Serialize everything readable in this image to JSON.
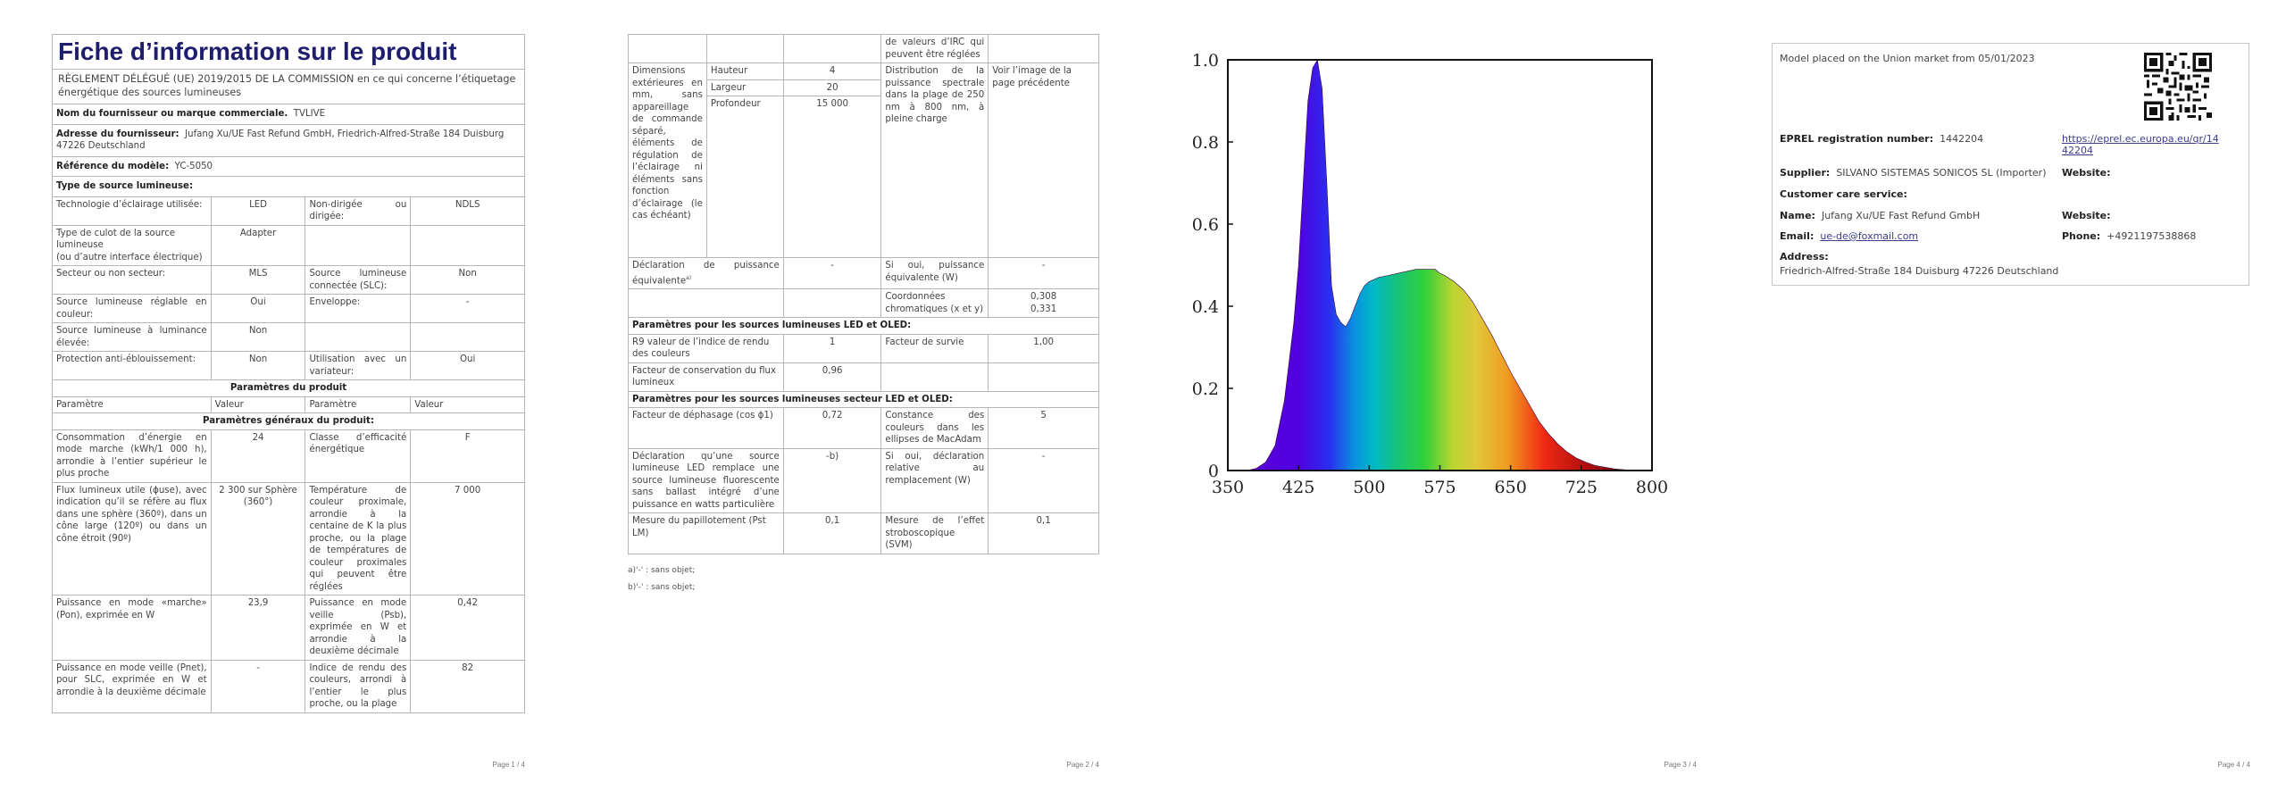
{
  "pages": {
    "p1": {
      "title": "Fiche d’information sur le produit",
      "regulation": "RÈGLEMENT DÉLÉGUÉ (UE) 2019/2015 DE LA COMMISSION en ce qui concerne l’étiquetage énergétique des sources lumineuses",
      "supplier_label": "Nom du fournisseur ou marque commerciale.",
      "supplier_value": "TVLIVE",
      "address_label": "Adresse du fournisseur:",
      "address_value": "Jufang Xu/UE Fast Refund GmbH, Friedrich-Alfred-Straße 184 Duisburg 47226 Deutschland",
      "model_label": "Référence du modèle:",
      "model_value": "YC-5050",
      "type_heading": "Type de source lumineuse:",
      "rows": {
        "tech_label": "Technologie d’éclairage utilisée:",
        "tech_value": "LED",
        "directional_label": "Non-dirigée ou dirigée:",
        "directional_value": "NDLS",
        "cap_label_1": "Type de culot de la source lumineuse",
        "cap_label_2": "(ou d’autre interface électrique)",
        "cap_value": "Adapter",
        "mains_label": "Secteur ou non secteur:",
        "mains_value": "MLS",
        "slc_label": "Source lumineuse connectée (SLC):",
        "slc_value": "Non",
        "colour_label": "Source lumineuse réglable en couleur:",
        "colour_value": "Oui",
        "envelope_label": "Enveloppe:",
        "envelope_value": "-",
        "lum_label": "Source lumineuse à luminance élevée:",
        "lum_value": "Non",
        "glare_label": "Protection anti-éblouissement:",
        "glare_value": "Non",
        "dimmer_label": "Utilisation avec un variateur:",
        "dimmer_value": "Oui"
      },
      "params_heading": "Paramètres du produit",
      "col_param": "Paramètre",
      "col_value": "Valeur",
      "general_heading": "Paramètres généraux du produit:",
      "general": {
        "energy_label": "Consommation d’énergie en mode marche (kWh/1 000 h), arrondie à l’entier supérieur le plus proche",
        "energy_value": "24",
        "class_label": "Classe d’efficacité énergétique",
        "class_value": "F",
        "flux_label": "Flux lumineux utile (ɸuse), avec indication qu’il se réfère au flux dans une sphère (360º), dans un cône large (120º) ou dans un cône étroit (90º)",
        "flux_value": "2 300 sur Sphère (360°)",
        "cct_label": "Température de couleur proximale, arrondie à la centaine de K la plus proche, ou la plage de températures de couleur proximales qui peuvent être réglées",
        "cct_value": "7 000",
        "pon_label": "Puissance en mode «marche» (Pon), exprimée en W",
        "pon_value": "23,9",
        "psb_label": "Puissance en mode veille (Psb), exprimée en W et arrondie à la deuxième décimale",
        "psb_value": "0,42",
        "pnet_label": "Puissance en mode veille (Pnet), pour SLC, exprimée en W et arrondie à la deuxième décimale",
        "pnet_value": "-",
        "cri_label": "Indice de rendu des couleurs, arrondi à l’entier le plus proche, ou la plage",
        "cri_value": "82"
      },
      "page_number": "Page 1 / 4"
    },
    "p2": {
      "cri_cont": "de valeurs d’IRC qui peuvent être réglées",
      "dims_label": "Dimensions extérieures en mm, sans appareillage de commande séparé, éléments de régulation de l’éclairage ni éléments sans fonction d’éclairage (le cas échéant)",
      "height_label": "Hauteur",
      "height_value": "4",
      "width_label": "Largeur",
      "width_value": "20",
      "depth_label": "Profondeur",
      "depth_value": "15 000",
      "spd_label": "Distribution de la puissance spectrale dans la plage de 250 nm à 800 nm, à pleine charge",
      "spd_value": "Voir l’image de la page précédente",
      "equiv_label": "Déclaration de puissance équivalente",
      "equiv_sup": "a)",
      "equiv_value": "-",
      "equiv_w_label": "Si oui, puissance équivalente (W)",
      "equiv_w_value": "-",
      "chroma_label": "Coordonnées chromatiques (x et y)",
      "chroma_x": "0,308",
      "chroma_y": "0,331",
      "led_heading": "Paramètres pour les sources lumineuses LED et OLED:",
      "r9_label": "R9 valeur de l’indice de rendu des couleurs",
      "r9_value": "1",
      "surv_label": "Facteur de survie",
      "surv_value": "1,00",
      "maint_label": "Facteur de conservation du flux lumineux",
      "maint_value": "0,96",
      "mains_heading": "Paramètres pour les sources lumineuses secteur LED et OLED:",
      "pf_label": "Facteur de déphasage (cos ϕ1)",
      "pf_value": "0,72",
      "macadam_label": "Constance des couleurs dans les ellipses de MacAdam",
      "macadam_value": "5",
      "replace_label": "Déclaration qu’une source lumineuse LED remplace une source lumineuse fluorescente sans ballast intégré d’une puissance en watts particulière",
      "replace_value": "-b)",
      "replace_w_label": "Si oui, déclaration relative au remplacement (W)",
      "replace_w_value": "-",
      "pst_label": "Mesure du papillotement (Pst LM)",
      "pst_value": "0,1",
      "svm_label": "Mesure de l’effet stroboscopique (SVM)",
      "svm_value": "0,1",
      "footnote_a": "a)'-' : sans objet;",
      "footnote_b": "b)'-' : sans objet;",
      "page_number": "Page 2 / 4"
    },
    "p3": {
      "page_number": "Page 3 / 4"
    },
    "p4": {
      "placed": "Model placed on the Union market from 05/01/2023",
      "eprel_label": "EPREL registration number:",
      "eprel_value": "1442204",
      "eprel_link_1": "https://eprel.ec.europa.eu/qr/14",
      "eprel_link_2": "42204",
      "supplier_label": "Supplier:",
      "supplier_value": "SILVANO SISTEMAS SONICOS SL  (Importer)",
      "website_label": "Website:",
      "care_label": "Customer care service:",
      "name_label": "Name:",
      "name_value": "Jufang Xu/UE Fast Refund GmbH",
      "website2_label": "Website:",
      "email_label": "Email:",
      "email_value": "ue-de@foxmail.com",
      "phone_label": "Phone:",
      "phone_value": "+4921197538868",
      "address_label": "Address:",
      "address_value": "Friedrich-Alfred-Straße 184 Duisburg 47226 Deutschland",
      "page_number": "Page 4 / 4"
    }
  },
  "chart_data": {
    "type": "area",
    "x": [
      350,
      370,
      380,
      390,
      400,
      410,
      420,
      425,
      430,
      435,
      440,
      445,
      450,
      455,
      460,
      465,
      470,
      475,
      480,
      485,
      490,
      495,
      500,
      510,
      520,
      530,
      540,
      550,
      560,
      570,
      575,
      580,
      590,
      600,
      610,
      620,
      630,
      640,
      650,
      660,
      670,
      680,
      690,
      700,
      710,
      720,
      730,
      740,
      750,
      760,
      770,
      780,
      790,
      800
    ],
    "y": [
      0,
      0,
      0.005,
      0.02,
      0.06,
      0.17,
      0.36,
      0.5,
      0.7,
      0.9,
      0.98,
      1.0,
      0.93,
      0.7,
      0.45,
      0.38,
      0.36,
      0.35,
      0.37,
      0.4,
      0.43,
      0.45,
      0.46,
      0.47,
      0.475,
      0.48,
      0.485,
      0.49,
      0.49,
      0.49,
      0.48,
      0.475,
      0.46,
      0.44,
      0.41,
      0.37,
      0.33,
      0.285,
      0.24,
      0.2,
      0.16,
      0.12,
      0.09,
      0.065,
      0.045,
      0.03,
      0.02,
      0.012,
      0.008,
      0.004,
      0.002,
      0,
      0,
      0
    ],
    "x_ticks": [
      "350",
      "425",
      "500",
      "575",
      "650",
      "725",
      "800"
    ],
    "y_ticks": [
      "0",
      "0.2",
      "0.4",
      "0.6",
      "0.8",
      "1.0"
    ],
    "xlim": [
      350,
      800
    ],
    "ylim": [
      0,
      1.0
    ],
    "grid": false
  }
}
